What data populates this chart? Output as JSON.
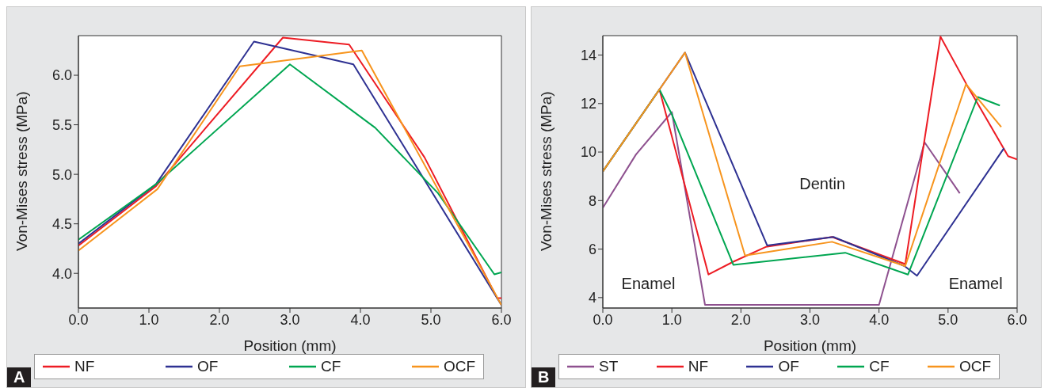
{
  "chart_data": [
    {
      "type": "line",
      "xlabel": "Position (mm)",
      "ylabel": "Von-Mises stress (MPa)",
      "xlim": [
        0,
        6
      ],
      "ylim": [
        3.65,
        6.4
      ],
      "xticks": [
        {
          "value": 0,
          "label": "0.0"
        },
        {
          "value": 1,
          "label": "1.0"
        },
        {
          "value": 2,
          "label": "2.0"
        },
        {
          "value": 3,
          "label": "3.0"
        },
        {
          "value": 4,
          "label": "4.0"
        },
        {
          "value": 5,
          "label": "5.0"
        },
        {
          "value": 6,
          "label": "6.0"
        }
      ],
      "yticks": [
        {
          "value": 4,
          "label": "4.0"
        },
        {
          "value": 4.5,
          "label": "4.5"
        },
        {
          "value": 5,
          "label": "5.0"
        },
        {
          "value": 5.5,
          "label": "5.5"
        },
        {
          "value": 6,
          "label": "6.0"
        }
      ],
      "grid": false,
      "legend": "bottom",
      "marker": "none",
      "line_style": "solid",
      "annotations": [
        "A"
      ],
      "series": [
        {
          "name": "NF",
          "color": "#ed1c24",
          "x": [
            0,
            1.1,
            2.9,
            3.84,
            4.91,
            5.94,
            6
          ],
          "values": [
            4.28,
            4.88,
            6.38,
            6.31,
            5.17,
            3.75,
            3.75
          ]
        },
        {
          "name": "OF",
          "color": "#2e3192",
          "x": [
            0,
            1.1,
            2.49,
            3.9,
            6
          ],
          "values": [
            4.3,
            4.9,
            6.34,
            6.11,
            3.68
          ]
        },
        {
          "name": "CF",
          "color": "#00a651",
          "x": [
            0,
            1.1,
            3,
            4.21,
            5.1,
            5.9,
            6
          ],
          "values": [
            4.34,
            4.9,
            6.11,
            5.47,
            4.81,
            3.99,
            4.01
          ]
        },
        {
          "name": "OCF",
          "color": "#f7941d",
          "x": [
            0,
            1.12,
            2.29,
            4.02,
            6
          ],
          "values": [
            4.23,
            4.85,
            6.09,
            6.25,
            3.68
          ]
        }
      ]
    },
    {
      "type": "line",
      "xlabel": "Position (mm)",
      "ylabel": "Von-Mises stress (MPa)",
      "xlim": [
        0,
        6
      ],
      "ylim": [
        3.57,
        14.8
      ],
      "xticks": [
        {
          "value": 0,
          "label": "0.0"
        },
        {
          "value": 1,
          "label": "1.0"
        },
        {
          "value": 2,
          "label": "2.0"
        },
        {
          "value": 3,
          "label": "3.0"
        },
        {
          "value": 4,
          "label": "4.0"
        },
        {
          "value": 5,
          "label": "5.0"
        },
        {
          "value": 6,
          "label": "6.0"
        }
      ],
      "yticks": [
        4,
        6,
        8,
        10,
        12,
        14
      ],
      "grid": false,
      "legend": "bottom",
      "marker": "none",
      "line_style": "solid",
      "annotations": [
        "Enamel",
        "Dentin",
        "Enamel",
        "B"
      ],
      "series": [
        {
          "name": "ST",
          "color": "#8e518f",
          "x": [
            0,
            0.48,
            1,
            1.48,
            4,
            4.66,
            5.17
          ],
          "values": [
            7.7,
            9.9,
            11.65,
            3.7,
            3.7,
            10.4,
            8.3
          ]
        },
        {
          "name": "NF",
          "color": "#ed1c24",
          "x": [
            0,
            0.82,
            1.53,
            1.89,
            2.36,
            3.32,
            4.38,
            4.89,
            5.27,
            5.87,
            6
          ],
          "values": [
            9.2,
            12.58,
            4.95,
            5.48,
            6.09,
            6.5,
            5.38,
            14.76,
            12.78,
            9.83,
            9.7
          ]
        },
        {
          "name": "OF",
          "color": "#2e3192",
          "x": [
            0,
            0.82,
            1.19,
            2.38,
            3.34,
            4.37,
            4.55,
            5.81
          ],
          "values": [
            9.2,
            12.58,
            14.1,
            6.15,
            6.5,
            5.3,
            4.9,
            10.16
          ]
        },
        {
          "name": "CF",
          "color": "#00a651",
          "x": [
            0,
            0.82,
            1,
            1.89,
            3.51,
            4.42,
            5.43,
            5.75
          ],
          "values": [
            9.2,
            12.58,
            11.55,
            5.35,
            5.85,
            4.95,
            12.27,
            11.92
          ]
        },
        {
          "name": "OCF",
          "color": "#f7941d",
          "x": [
            0,
            0.82,
            1.19,
            2.06,
            3.32,
            4.38,
            5.26,
            5.77
          ],
          "values": [
            9.2,
            12.58,
            14.1,
            5.73,
            6.3,
            5.3,
            12.8,
            11.03
          ]
        }
      ]
    }
  ]
}
